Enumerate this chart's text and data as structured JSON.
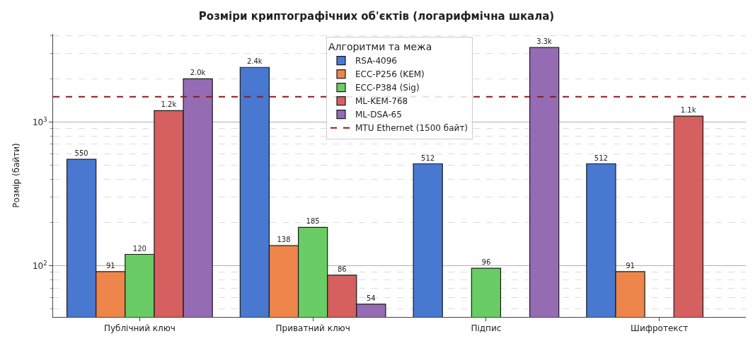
{
  "chart_data": {
    "type": "bar",
    "title": "Розміри криптографічних об'єктів (логарифмічна шкала)",
    "ylabel": "Розмір (байти)",
    "legend_title": "Алгоритми та межа",
    "categories": [
      "Публічний ключ",
      "Приватний ключ",
      "Підпис",
      "Шифротекст"
    ],
    "series": [
      {
        "name": "RSA-4096",
        "color": "#4878d0",
        "values": [
          550,
          2400,
          512,
          512
        ],
        "value_labels": [
          "550",
          "2.4k",
          "512",
          "512"
        ]
      },
      {
        "name": "ECC-P256 (KEM)",
        "color": "#ee854a",
        "values": [
          91,
          138,
          null,
          91
        ],
        "value_labels": [
          "91",
          "138",
          null,
          "91"
        ]
      },
      {
        "name": "ECC-P384 (Sig)",
        "color": "#6acc64",
        "values": [
          120,
          185,
          96,
          null
        ],
        "value_labels": [
          "120",
          "185",
          "96",
          null
        ]
      },
      {
        "name": "ML-KEM-768",
        "color": "#d65f5f",
        "values": [
          1200,
          86,
          null,
          1100
        ],
        "value_labels": [
          "1.2k",
          "86",
          null,
          "1.1k"
        ]
      },
      {
        "name": "ML-DSA-65",
        "color": "#956cb4",
        "values": [
          2000,
          54,
          3300,
          null
        ],
        "value_labels": [
          "2.0k",
          "54",
          "3.3k",
          null
        ]
      }
    ],
    "log": "y",
    "ylim": [
      44,
      4100
    ],
    "yticks": [
      {
        "value": 100,
        "label": "10$^{2}$"
      },
      {
        "value": 1000,
        "label": "10$^{3}$"
      },
      {
        "value": 50,
        "label": null
      },
      {
        "value": 60,
        "label": null
      },
      {
        "value": 70,
        "label": null
      },
      {
        "value": 80,
        "label": null
      },
      {
        "value": 90,
        "label": null
      },
      {
        "value": 200,
        "label": null
      },
      {
        "value": 300,
        "label": null
      },
      {
        "value": 400,
        "label": null
      },
      {
        "value": 500,
        "label": null
      },
      {
        "value": 600,
        "label": null
      },
      {
        "value": 700,
        "label": null
      },
      {
        "value": 800,
        "label": null
      },
      {
        "value": 900,
        "label": null
      },
      {
        "value": 2000,
        "label": null
      },
      {
        "value": 3000,
        "label": null
      },
      {
        "value": 4000,
        "label": null
      }
    ],
    "ref_lines": [
      {
        "axis": "y",
        "value": 1500,
        "label": "MTU Ethernet (1500 байт)",
        "color": "#8b1a1a",
        "line_style": "dashed"
      }
    ],
    "grid": "y",
    "legend": "top"
  }
}
